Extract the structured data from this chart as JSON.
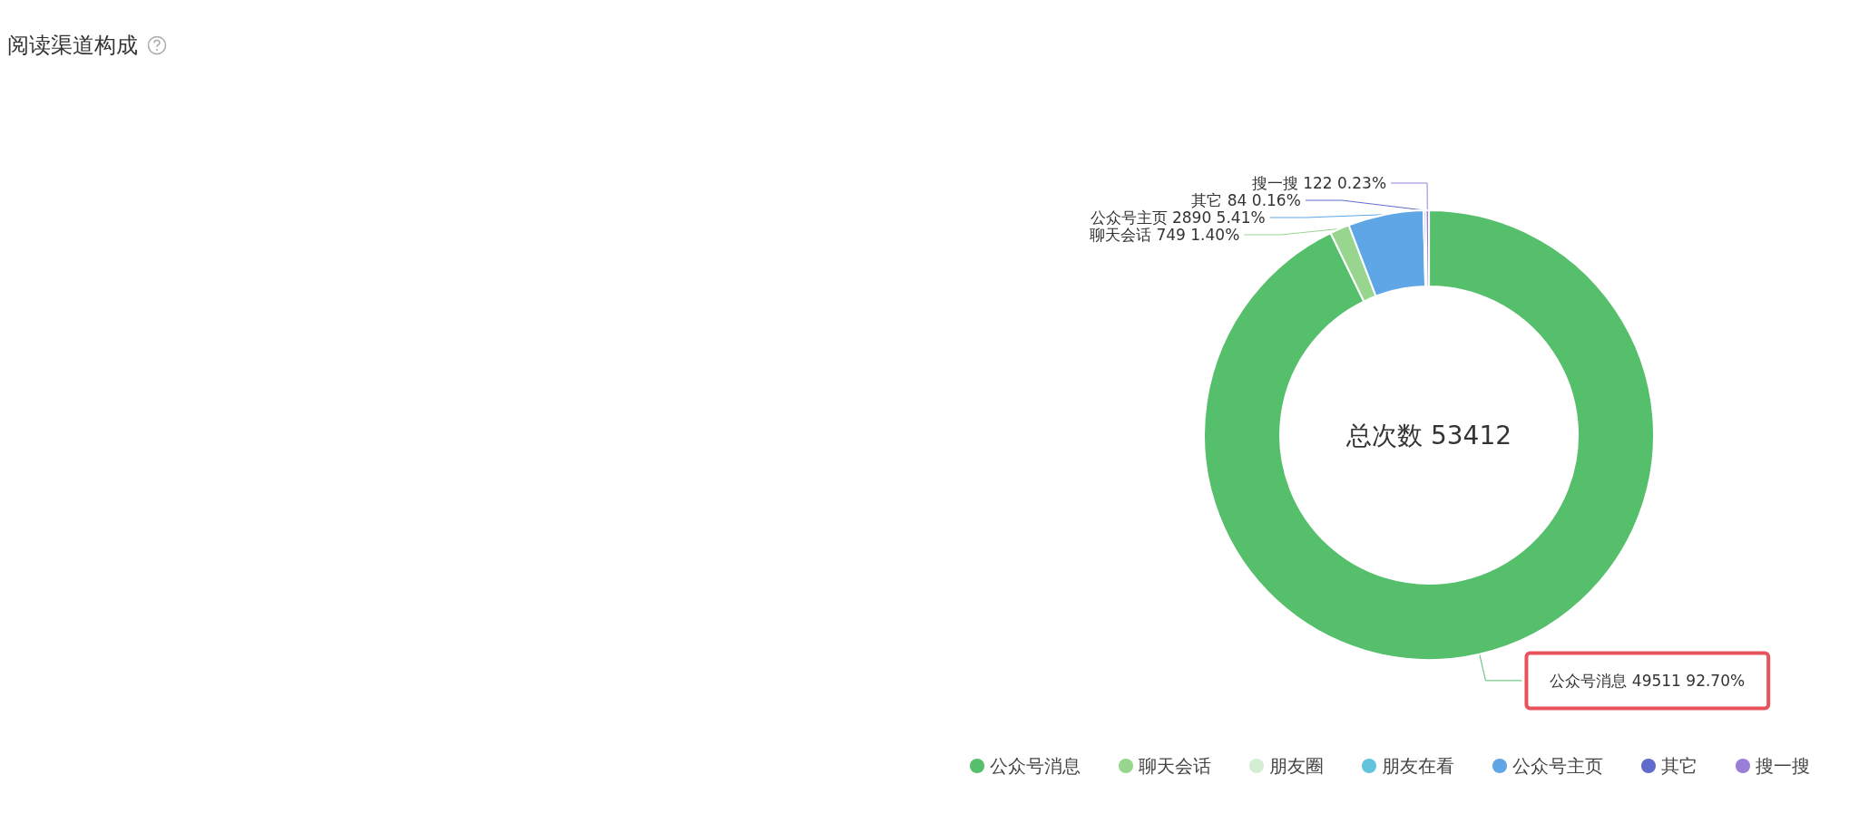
{
  "chart_data": {
    "type": "donut",
    "title": "阅读渠道构成",
    "categories": [
      "公众号消息",
      "聊天会话",
      "朋友圈",
      "朋友在看",
      "公众号主页",
      "其它",
      "搜一搜"
    ],
    "values": [
      49511,
      749,
      null,
      null,
      2890,
      84,
      122
    ],
    "value_labels": [
      "49511 92.70%",
      "749 1.40%",
      null,
      null,
      "2890 5.41%",
      "84 0.16%",
      "122 0.23%"
    ],
    "colors": [
      "#55bf6b",
      "#98d68f",
      "#d3eed2",
      "#62c3dc",
      "#5ea6e6",
      "#5f6ccc",
      "#9a7fd8"
    ],
    "annotations": [
      "总次数 53412"
    ],
    "legend": "bottom"
  }
}
